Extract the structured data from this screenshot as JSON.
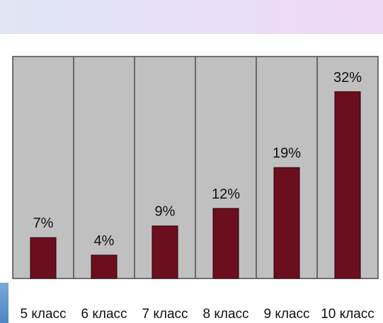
{
  "chart_data": {
    "type": "bar",
    "categories": [
      "5 класс",
      "6 класс",
      "7 класс",
      "8 класс",
      "9 класс",
      "10 класс"
    ],
    "values": [
      7,
      4,
      9,
      12,
      19,
      32
    ],
    "value_labels": [
      "7%",
      "4%",
      "9%",
      "12%",
      "19%",
      "32%"
    ],
    "title": "",
    "xlabel": "",
    "ylabel": "",
    "ylim": [
      0,
      35
    ],
    "grid": "vertical category separators",
    "legend": "none",
    "colors": {
      "bar": "#6b0f1f",
      "plot_background": "#c0c0c0",
      "separator": "#4a4a4a"
    }
  }
}
